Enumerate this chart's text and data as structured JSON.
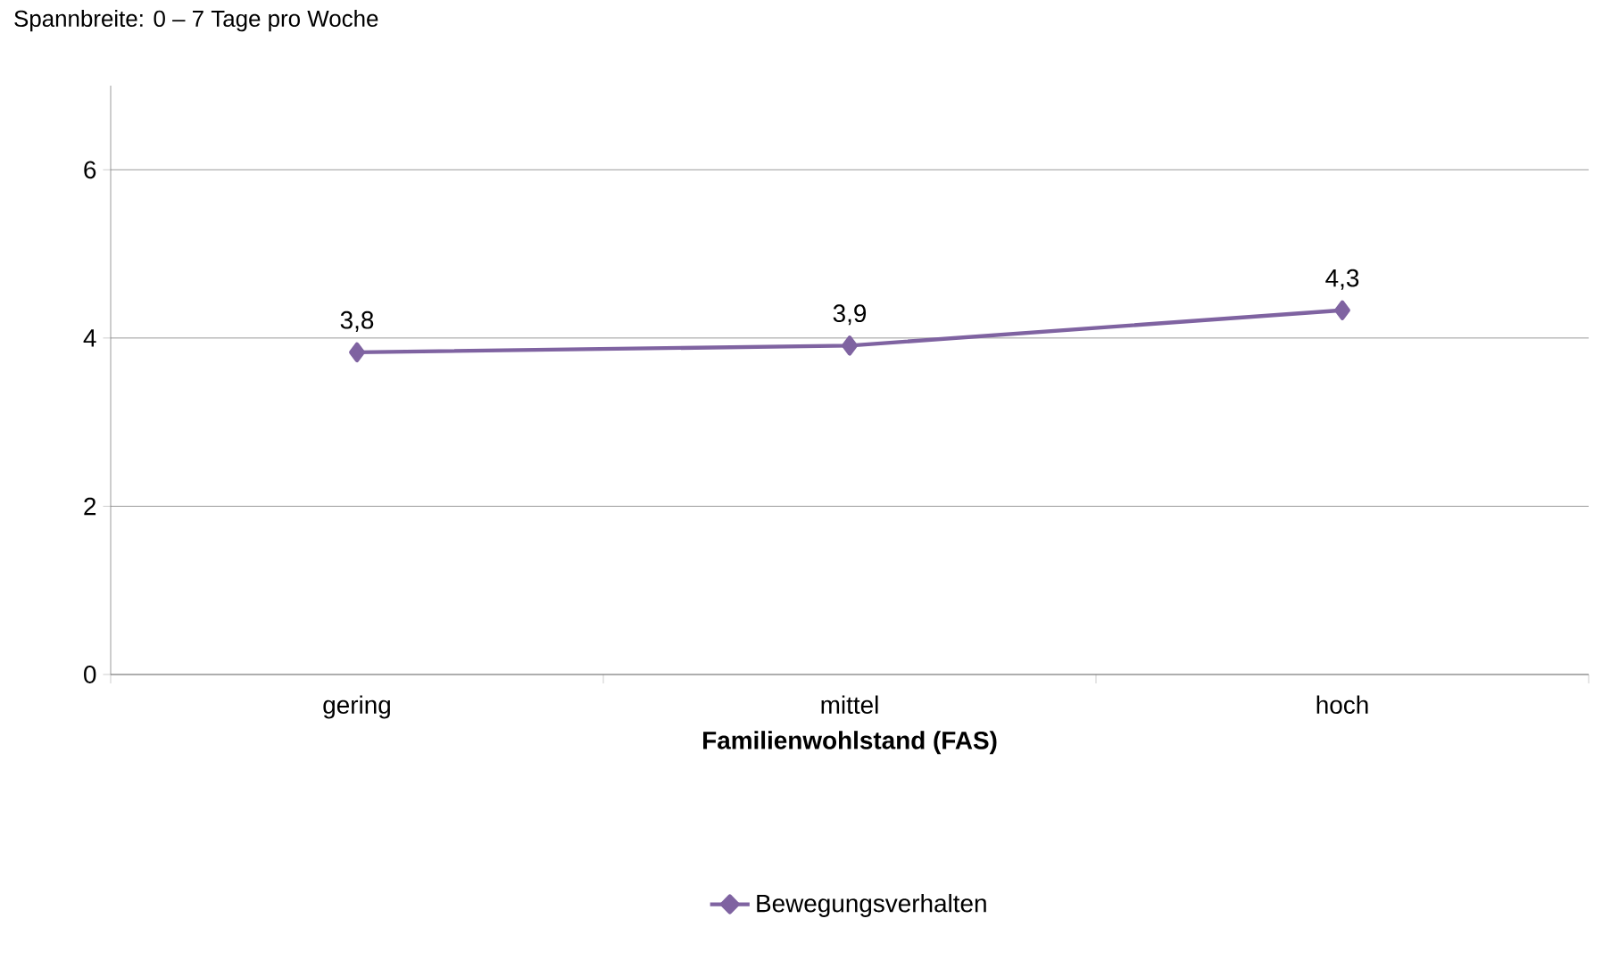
{
  "chart_data": {
    "type": "line",
    "subtitle": "Spannbreite: 0 – 7 Tage pro Woche",
    "xlabel": "Familienwohlstand (FAS)",
    "categories": [
      "gering",
      "mittel",
      "hoch"
    ],
    "series": [
      {
        "name": "Bewegungsverhalten",
        "color": "#7f63a1",
        "values": [
          3.83,
          3.91,
          4.33
        ],
        "value_labels": [
          "3,8",
          "3,9",
          "4,3"
        ]
      }
    ],
    "ylim": [
      0,
      7
    ],
    "yticks": [
      0,
      2,
      4,
      6
    ],
    "grid": "y",
    "legend": "bottom",
    "marker": "diamond",
    "line_style": "solid"
  }
}
